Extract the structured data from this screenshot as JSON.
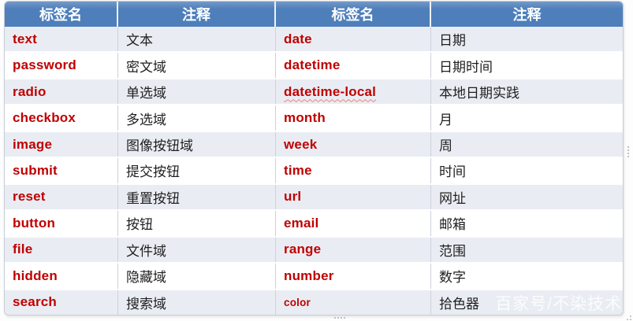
{
  "table": {
    "headers": [
      "标签名",
      "注释",
      "标签名",
      "注释"
    ],
    "rows": [
      {
        "tag_left": "text",
        "note_left": "文本",
        "tag_right": "date",
        "note_right": "日期"
      },
      {
        "tag_left": "password",
        "note_left": "密文域",
        "tag_right": "datetime",
        "note_right": "日期时间"
      },
      {
        "tag_left": "radio",
        "note_left": "单选域",
        "tag_right": "datetime-local",
        "note_right": "本地日期实践",
        "wavy_right": true
      },
      {
        "tag_left": "checkbox",
        "note_left": "多选域",
        "tag_right": "month",
        "note_right": "月"
      },
      {
        "tag_left": "image",
        "note_left": "图像按钮域",
        "tag_right": "week",
        "note_right": "周"
      },
      {
        "tag_left": "submit",
        "note_left": "提交按钮",
        "tag_right": "time",
        "note_right": "时间"
      },
      {
        "tag_left": "reset",
        "note_left": "重置按钮",
        "tag_right": "url",
        "note_right": "网址"
      },
      {
        "tag_left": "button",
        "note_left": "按钮",
        "tag_right": "email",
        "note_right": "邮箱"
      },
      {
        "tag_left": "file",
        "note_left": "文件域",
        "tag_right": "range",
        "note_right": "范围"
      },
      {
        "tag_left": "hidden",
        "note_left": "隐藏域",
        "tag_right": "number",
        "note_right": "数字"
      },
      {
        "tag_left": "search",
        "note_left": "搜索域",
        "tag_right": "color",
        "note_right": "拾色器",
        "small_right": true
      }
    ]
  },
  "watermark": "百家号/不染技术",
  "colors": {
    "header_bg": "#4e7fba",
    "row_alt": "#e9edf3",
    "row_plain": "#ffffff",
    "tag_red": "#c00000",
    "divider": "#ccd2dc"
  }
}
